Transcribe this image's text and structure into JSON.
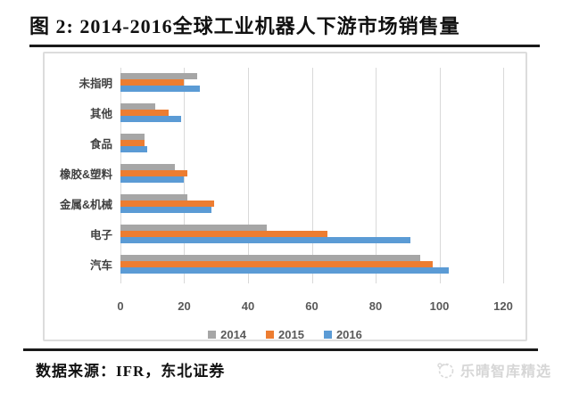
{
  "figure": {
    "title": "图 2: 2014-2016全球工业机器人下游市场销售量",
    "source_note": "数据来源：IFR，东北证券",
    "watermark_label": "乐晴智库精选"
  },
  "chart_data": {
    "type": "bar",
    "orientation": "horizontal",
    "title": "图 2: 2014-2016全球工业机器人下游市场销售量",
    "categories": [
      "未指明",
      "其他",
      "食品",
      "橡胶&塑料",
      "金属&机械",
      "电子",
      "汽车"
    ],
    "series": [
      {
        "name": "2014",
        "color": "#a6a6a6",
        "values": [
          24,
          11,
          7.5,
          17,
          21,
          46,
          94
        ]
      },
      {
        "name": "2015",
        "color": "#ed7d31",
        "values": [
          20,
          15,
          7.5,
          21,
          29.5,
          65,
          98
        ]
      },
      {
        "name": "2016",
        "color": "#5b9bd5",
        "values": [
          25,
          19,
          8.5,
          20,
          28.5,
          91,
          103
        ]
      }
    ],
    "xlim": [
      0,
      120
    ],
    "x_ticks": [
      0,
      20,
      40,
      60,
      80,
      100,
      120
    ],
    "grid": true,
    "legend_position": "bottom",
    "style": {
      "grid_color": "#d9d9d9",
      "tick_text_color": "#595959",
      "category_text_color": "#404040"
    }
  }
}
